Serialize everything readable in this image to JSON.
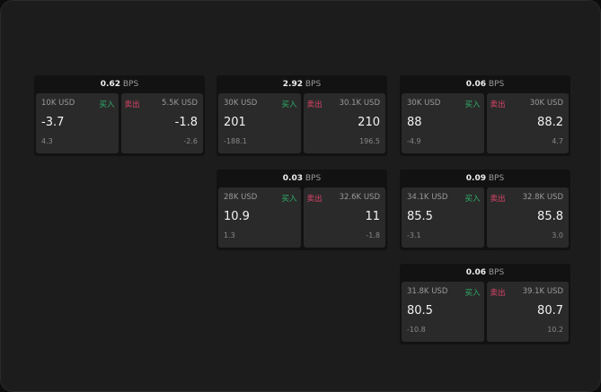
{
  "widgets": [
    {
      "bps": "0.62",
      "unit": "BPS",
      "buy": {
        "size": "10K USD",
        "label": "买入",
        "price": "-3.7",
        "change": "4.3"
      },
      "sell": {
        "size": "5.5K USD",
        "label": "卖出",
        "price": "-1.8",
        "change": "-2.6"
      }
    },
    {
      "bps": "2.92",
      "unit": "BPS",
      "buy": {
        "size": "30K USD",
        "label": "买入",
        "price": "201",
        "change": "-188.1"
      },
      "sell": {
        "size": "30.1K USD",
        "label": "卖出",
        "price": "210",
        "change": "196.5"
      }
    },
    {
      "bps": "0.06",
      "unit": "BPS",
      "buy": {
        "size": "30K USD",
        "label": "买入",
        "price": "88",
        "change": "-4.9"
      },
      "sell": {
        "size": "30K USD",
        "label": "卖出",
        "price": "88.2",
        "change": "4.7"
      }
    },
    {
      "bps": "0.03",
      "unit": "BPS",
      "buy": {
        "size": "28K USD",
        "label": "买入",
        "price": "10.9",
        "change": "1.3"
      },
      "sell": {
        "size": "32.6K USD",
        "label": "卖出",
        "price": "11",
        "change": "-1.8"
      }
    },
    {
      "bps": "0.09",
      "unit": "BPS",
      "buy": {
        "size": "34.1K USD",
        "label": "买入",
        "price": "85.5",
        "change": "-3.1"
      },
      "sell": {
        "size": "32.8K USD",
        "label": "卖出",
        "price": "85.8",
        "change": "3.0"
      }
    },
    {
      "bps": "0.06",
      "unit": "BPS",
      "buy": {
        "size": "31.8K USD",
        "label": "买入",
        "price": "80.5",
        "change": "-10.8"
      },
      "sell": {
        "size": "39.1K USD",
        "label": "卖出",
        "price": "80.7",
        "change": "10.2"
      }
    }
  ]
}
